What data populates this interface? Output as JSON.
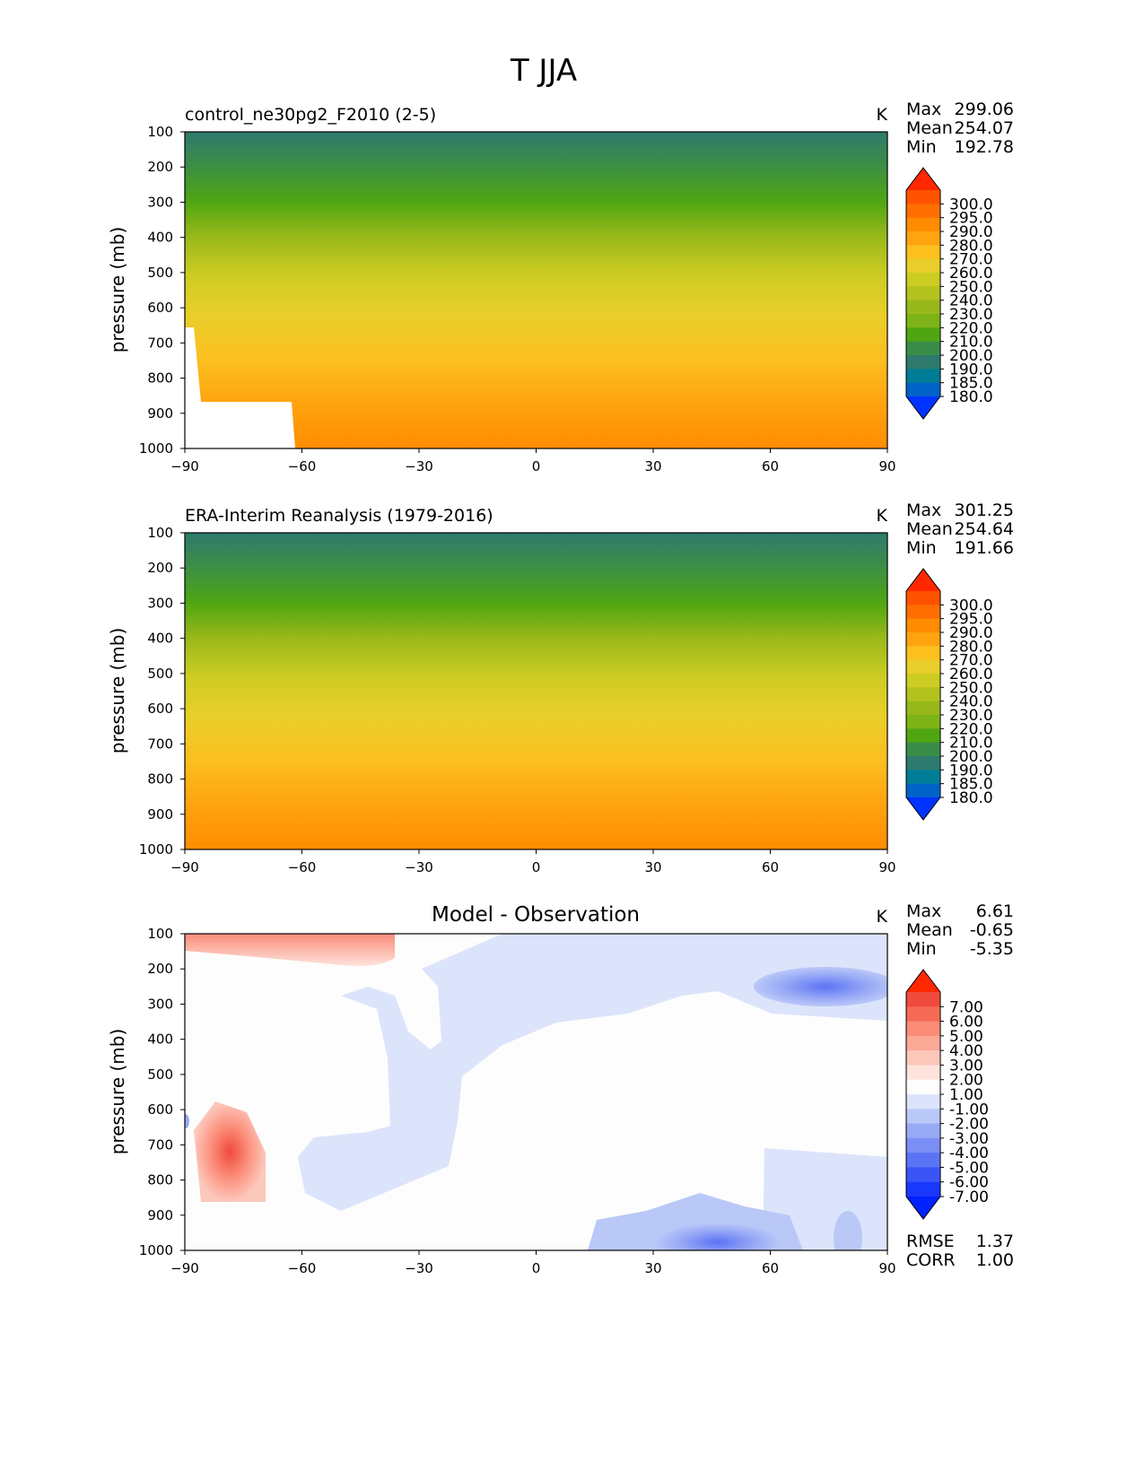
{
  "chart_data": {
    "type": "contour",
    "suptitle": "T JJA",
    "panels": [
      {
        "id": "test",
        "left_title": "control_ne30pg2_F2010 (2-5)",
        "center_title": "",
        "units": "K",
        "ylabel": "pressure (mb)",
        "xlim": [
          -90,
          90
        ],
        "ylim": [
          100,
          1000
        ],
        "xticks": [
          "−90",
          "−60",
          "−30",
          "0",
          "30",
          "60",
          "90"
        ],
        "yticks": [
          "100",
          "200",
          "300",
          "400",
          "500",
          "600",
          "700",
          "800",
          "900",
          "1000"
        ],
        "stats": [
          {
            "label": "Max",
            "value": "299.06"
          },
          {
            "label": "Mean",
            "value": "254.07"
          },
          {
            "label": "Min",
            "value": "192.78"
          }
        ],
        "extra_stats": [],
        "colorbar": {
          "labels": [
            "300.0",
            "295.0",
            "290.0",
            "280.0",
            "270.0",
            "260.0",
            "250.0",
            "240.0",
            "230.0",
            "220.0",
            "210.0",
            "200.0",
            "190.0",
            "185.0",
            "180.0"
          ],
          "colors": [
            "#ff2800",
            "#ff5200",
            "#ff6e00",
            "#ff8c00",
            "#ffa30f",
            "#fbbf1e",
            "#e9ce2a",
            "#cccc22",
            "#b4c21e",
            "#98b81a",
            "#7db317",
            "#4fa612",
            "#3a8d48",
            "#2e7a6e",
            "#007d96",
            "#0063c8",
            "#0033ff"
          ]
        }
      },
      {
        "id": "ref",
        "left_title": "ERA-Interim Reanalysis (1979-2016)",
        "center_title": "",
        "units": "K",
        "ylabel": "pressure (mb)",
        "xlim": [
          -90,
          90
        ],
        "ylim": [
          100,
          1000
        ],
        "xticks": [
          "−90",
          "−60",
          "−30",
          "0",
          "30",
          "60",
          "90"
        ],
        "yticks": [
          "100",
          "200",
          "300",
          "400",
          "500",
          "600",
          "700",
          "800",
          "900",
          "1000"
        ],
        "stats": [
          {
            "label": "Max",
            "value": "301.25"
          },
          {
            "label": "Mean",
            "value": "254.64"
          },
          {
            "label": "Min",
            "value": "191.66"
          }
        ],
        "extra_stats": [],
        "colorbar": {
          "labels": [
            "300.0",
            "295.0",
            "290.0",
            "280.0",
            "270.0",
            "260.0",
            "250.0",
            "240.0",
            "230.0",
            "220.0",
            "210.0",
            "200.0",
            "190.0",
            "185.0",
            "180.0"
          ],
          "colors": [
            "#ff2800",
            "#ff5200",
            "#ff6e00",
            "#ff8c00",
            "#ffa30f",
            "#fbbf1e",
            "#e9ce2a",
            "#cccc22",
            "#b4c21e",
            "#98b81a",
            "#7db317",
            "#4fa612",
            "#3a8d48",
            "#2e7a6e",
            "#007d96",
            "#0063c8",
            "#0033ff"
          ]
        }
      },
      {
        "id": "diff",
        "left_title": "",
        "center_title": "Model - Observation",
        "units": "K",
        "ylabel": "pressure (mb)",
        "xlim": [
          -90,
          90
        ],
        "ylim": [
          100,
          1000
        ],
        "xticks": [
          "−90",
          "−60",
          "−30",
          "0",
          "30",
          "60",
          "90"
        ],
        "yticks": [
          "100",
          "200",
          "300",
          "400",
          "500",
          "600",
          "700",
          "800",
          "900",
          "1000"
        ],
        "stats": [
          {
            "label": "Max",
            "value": "6.61"
          },
          {
            "label": "Mean",
            "value": "-0.65"
          },
          {
            "label": "Min",
            "value": "-5.35"
          }
        ],
        "extra_stats": [
          {
            "label": "RMSE",
            "value": "1.37"
          },
          {
            "label": "CORR",
            "value": "1.00"
          }
        ],
        "colorbar": {
          "labels": [
            "7.00",
            "6.00",
            "5.00",
            "4.00",
            "3.00",
            "2.00",
            "1.00",
            "-1.00",
            "-2.00",
            "-3.00",
            "-4.00",
            "-5.00",
            "-6.00",
            "-7.00"
          ],
          "colors": [
            "#ff2800",
            "#f04a3c",
            "#f56a55",
            "#fb8c78",
            "#fba997",
            "#fcc8bc",
            "#fde3dc",
            "#fdfdfd",
            "#dce4fb",
            "#bac8f8",
            "#98a9f6",
            "#7a8ef5",
            "#5b73f5",
            "#3a54f8",
            "#1a38fb",
            "#0022ff"
          ]
        }
      }
    ]
  }
}
